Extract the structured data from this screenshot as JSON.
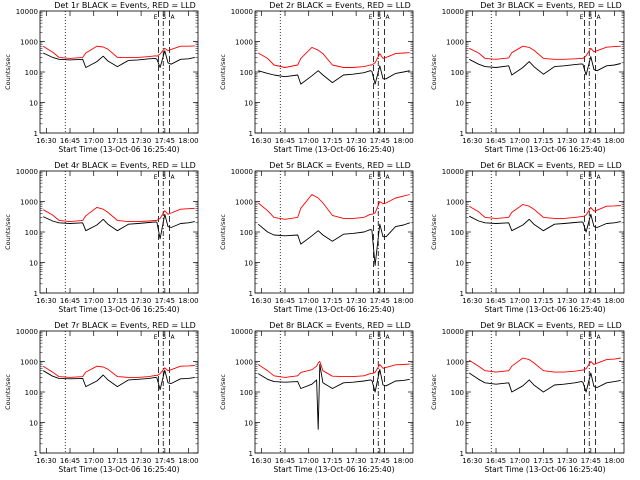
{
  "figure": {
    "xlabel": "Start Time (13-Oct-06 16:25:40)",
    "ylabel": "Counts/sec",
    "legend_events": "BLACK = Events",
    "legend_lld": "RED = LLD",
    "marker_labels": [
      "E",
      "S",
      "A"
    ]
  },
  "colors": {
    "events": "#000000",
    "lld": "#ff0000",
    "axes": "#000000"
  },
  "chart_data": [
    {
      "type": "line",
      "title": "Det 1r BLACK = Events, RED = LLD",
      "xlabel": "Start Time (13-Oct-06 16:25:40)",
      "ylabel": "Counts/sec",
      "scale": "log",
      "xlim": [
        "16:26",
        "18:06"
      ],
      "ylim": [
        1,
        10000
      ],
      "xticks": [
        "16:30",
        "16:45",
        "17:00",
        "17:15",
        "17:30",
        "17:45",
        "18:00"
      ],
      "yticks": [
        "1",
        "10",
        "100",
        "1000",
        "10000"
      ],
      "x": [
        "16:28",
        "16:34",
        "16:38",
        "16:45",
        "16:53",
        "16:55",
        "17:02",
        "17:06",
        "17:09",
        "17:15",
        "17:22",
        "17:28",
        "17:35",
        "17:39",
        "17:40",
        "17:42",
        "17:45",
        "17:47",
        "17:49",
        "17:55",
        "18:00",
        "18:04"
      ],
      "series": [
        {
          "name": "Events",
          "color": "#000000",
          "values": [
            420,
            300,
            260,
            250,
            260,
            140,
            220,
            330,
            230,
            150,
            240,
            250,
            270,
            280,
            260,
            140,
            500,
            200,
            180,
            260,
            270,
            300
          ]
        },
        {
          "name": "LLD",
          "color": "#ff0000",
          "values": [
            700,
            450,
            300,
            280,
            300,
            420,
            700,
            660,
            560,
            300,
            300,
            300,
            320,
            340,
            330,
            390,
            600,
            500,
            550,
            700,
            700,
            720
          ]
        }
      ]
    },
    {
      "type": "line",
      "title": "Det 2r BLACK = Events, RED = LLD",
      "xlabel": "Start Time (13-Oct-06 16:25:40)",
      "ylabel": "Counts/sec",
      "scale": "log",
      "xlim": [
        "16:26",
        "18:06"
      ],
      "ylim": [
        1,
        10000
      ],
      "xticks": [
        "16:30",
        "16:45",
        "17:00",
        "17:15",
        "17:30",
        "17:45",
        "18:00"
      ],
      "yticks": [
        "1",
        "10",
        "100",
        "1000",
        "10000"
      ],
      "x": [
        "16:28",
        "16:34",
        "16:38",
        "16:45",
        "16:53",
        "16:55",
        "17:02",
        "17:06",
        "17:09",
        "17:15",
        "17:22",
        "17:28",
        "17:35",
        "17:39",
        "17:40",
        "17:42",
        "17:45",
        "17:47",
        "17:49",
        "17:55",
        "18:00",
        "18:04"
      ],
      "series": [
        {
          "name": "Events",
          "color": "#000000",
          "values": [
            110,
            90,
            80,
            70,
            80,
            40,
            75,
            110,
            80,
            45,
            80,
            85,
            95,
            110,
            105,
            40,
            160,
            60,
            60,
            90,
            100,
            110
          ]
        },
        {
          "name": "LLD",
          "color": "#ff0000",
          "values": [
            420,
            280,
            170,
            140,
            170,
            280,
            640,
            520,
            400,
            170,
            140,
            140,
            150,
            170,
            170,
            200,
            400,
            280,
            300,
            400,
            420,
            430
          ]
        }
      ]
    },
    {
      "type": "line",
      "title": "Det 3r BLACK = Events, RED = LLD",
      "xlabel": "Start Time (13-Oct-06 16:25:40)",
      "ylabel": "Counts/sec",
      "scale": "log",
      "xlim": [
        "16:26",
        "18:06"
      ],
      "ylim": [
        1,
        10000
      ],
      "xticks": [
        "16:30",
        "16:45",
        "17:00",
        "17:15",
        "17:30",
        "17:45",
        "18:00"
      ],
      "yticks": [
        "1",
        "10",
        "100",
        "1000",
        "10000"
      ],
      "x": [
        "16:28",
        "16:34",
        "16:38",
        "16:45",
        "16:53",
        "16:55",
        "17:02",
        "17:06",
        "17:09",
        "17:15",
        "17:22",
        "17:28",
        "17:35",
        "17:39",
        "17:40",
        "17:42",
        "17:45",
        "17:47",
        "17:49",
        "17:55",
        "18:00",
        "18:04"
      ],
      "series": [
        {
          "name": "Events",
          "color": "#000000",
          "values": [
            260,
            180,
            150,
            140,
            160,
            80,
            140,
            220,
            150,
            85,
            150,
            160,
            175,
            185,
            180,
            80,
            320,
            120,
            110,
            160,
            170,
            190
          ]
        },
        {
          "name": "LLD",
          "color": "#ff0000",
          "values": [
            600,
            420,
            280,
            260,
            290,
            430,
            700,
            640,
            520,
            280,
            260,
            260,
            270,
            280,
            280,
            340,
            600,
            460,
            500,
            650,
            680,
            700
          ]
        }
      ]
    },
    {
      "type": "line",
      "title": "Det 4r BLACK = Events, RED = LLD",
      "xlabel": "Start Time (13-Oct-06 16:25:40)",
      "ylabel": "Counts/sec",
      "scale": "log",
      "xlim": [
        "16:26",
        "18:06"
      ],
      "ylim": [
        1,
        10000
      ],
      "xticks": [
        "16:30",
        "16:45",
        "17:00",
        "17:15",
        "17:30",
        "17:45",
        "18:00"
      ],
      "yticks": [
        "1",
        "10",
        "100",
        "1000",
        "10000"
      ],
      "x": [
        "16:28",
        "16:34",
        "16:38",
        "16:45",
        "16:53",
        "16:55",
        "17:02",
        "17:06",
        "17:09",
        "17:15",
        "17:22",
        "17:28",
        "17:35",
        "17:39",
        "17:40",
        "17:42",
        "17:45",
        "17:47",
        "17:49",
        "17:55",
        "18:00",
        "18:04"
      ],
      "series": [
        {
          "name": "Events",
          "color": "#000000",
          "values": [
            320,
            230,
            200,
            190,
            200,
            110,
            170,
            260,
            180,
            110,
            180,
            190,
            205,
            215,
            210,
            60,
            380,
            150,
            140,
            190,
            200,
            220
          ]
        },
        {
          "name": "LLD",
          "color": "#ff0000",
          "values": [
            540,
            360,
            240,
            220,
            240,
            340,
            640,
            560,
            440,
            240,
            220,
            220,
            230,
            240,
            240,
            280,
            500,
            380,
            420,
            560,
            580,
            600
          ]
        }
      ]
    },
    {
      "type": "line",
      "title": "Det 5r BLACK = Events, RED = LLD",
      "xlabel": "Start Time (13-Oct-06 16:25:40)",
      "ylabel": "Counts/sec",
      "scale": "log",
      "xlim": [
        "16:26",
        "18:06"
      ],
      "ylim": [
        1,
        10000
      ],
      "xticks": [
        "16:30",
        "16:45",
        "17:00",
        "17:15",
        "17:30",
        "17:45",
        "18:00"
      ],
      "yticks": [
        "1",
        "10",
        "100",
        "1000",
        "10000"
      ],
      "x": [
        "16:28",
        "16:34",
        "16:38",
        "16:45",
        "16:53",
        "16:55",
        "17:02",
        "17:06",
        "17:09",
        "17:15",
        "17:22",
        "17:28",
        "17:35",
        "17:39",
        "17:40",
        "17:42",
        "17:45",
        "17:47",
        "17:49",
        "17:55",
        "18:00",
        "18:04"
      ],
      "series": [
        {
          "name": "Events",
          "color": "#000000",
          "values": [
            180,
            100,
            80,
            75,
            80,
            40,
            75,
            110,
            80,
            50,
            85,
            90,
            100,
            120,
            115,
            8,
            180,
            70,
            70,
            150,
            170,
            200
          ]
        },
        {
          "name": "LLD",
          "color": "#ff0000",
          "values": [
            900,
            500,
            300,
            260,
            300,
            600,
            1700,
            1300,
            900,
            350,
            280,
            280,
            300,
            380,
            380,
            420,
            1000,
            850,
            900,
            1300,
            1500,
            1700
          ]
        }
      ]
    },
    {
      "type": "line",
      "title": "Det 6r BLACK = Events, RED = LLD",
      "xlabel": "Start Time (13-Oct-06 16:25:40)",
      "ylabel": "Counts/sec",
      "scale": "log",
      "xlim": [
        "16:26",
        "18:06"
      ],
      "ylim": [
        1,
        10000
      ],
      "xticks": [
        "16:30",
        "16:45",
        "17:00",
        "17:15",
        "17:30",
        "17:45",
        "18:00"
      ],
      "yticks": [
        "1",
        "10",
        "100",
        "1000",
        "10000"
      ],
      "x": [
        "16:28",
        "16:34",
        "16:38",
        "16:45",
        "16:53",
        "16:55",
        "17:02",
        "17:06",
        "17:09",
        "17:15",
        "17:22",
        "17:28",
        "17:35",
        "17:39",
        "17:40",
        "17:42",
        "17:45",
        "17:47",
        "17:49",
        "17:55",
        "18:00",
        "18:04"
      ],
      "series": [
        {
          "name": "Events",
          "color": "#000000",
          "values": [
            330,
            230,
            200,
            190,
            200,
            110,
            170,
            260,
            180,
            110,
            180,
            190,
            205,
            215,
            210,
            100,
            380,
            150,
            140,
            190,
            200,
            220
          ]
        },
        {
          "name": "LLD",
          "color": "#ff0000",
          "values": [
            700,
            460,
            300,
            280,
            300,
            440,
            800,
            700,
            560,
            300,
            280,
            280,
            300,
            320,
            320,
            360,
            640,
            480,
            520,
            700,
            720,
            740
          ]
        }
      ]
    },
    {
      "type": "line",
      "title": "Det 7r BLACK = Events, RED = LLD",
      "xlabel": "Start Time (13-Oct-06 16:25:40)",
      "ylabel": "Counts/sec",
      "scale": "log",
      "xlim": [
        "16:26",
        "18:06"
      ],
      "ylim": [
        1,
        10000
      ],
      "xticks": [
        "16:30",
        "16:45",
        "17:00",
        "17:15",
        "17:30",
        "17:45",
        "18:00"
      ],
      "yticks": [
        "1",
        "10",
        "100",
        "1000",
        "10000"
      ],
      "x": [
        "16:28",
        "16:34",
        "16:38",
        "16:45",
        "16:53",
        "16:55",
        "17:02",
        "17:06",
        "17:09",
        "17:15",
        "17:22",
        "17:28",
        "17:35",
        "17:39",
        "17:40",
        "17:42",
        "17:45",
        "17:47",
        "17:49",
        "17:55",
        "18:00",
        "18:04"
      ],
      "series": [
        {
          "name": "Events",
          "color": "#000000",
          "values": [
            500,
            330,
            280,
            270,
            280,
            150,
            230,
            360,
            250,
            150,
            250,
            260,
            280,
            300,
            290,
            120,
            520,
            200,
            190,
            270,
            280,
            300
          ]
        },
        {
          "name": "LLD",
          "color": "#ff0000",
          "values": [
            700,
            450,
            320,
            300,
            320,
            450,
            700,
            660,
            560,
            320,
            300,
            300,
            320,
            350,
            340,
            400,
            620,
            500,
            540,
            700,
            720,
            740
          ]
        }
      ]
    },
    {
      "type": "line",
      "title": "Det 8r BLACK = Events, RED = LLD",
      "xlabel": "Start Time (13-Oct-06 16:25:40)",
      "ylabel": "Counts/sec",
      "scale": "log",
      "xlim": [
        "16:26",
        "18:06"
      ],
      "ylim": [
        1,
        10000
      ],
      "xticks": [
        "16:30",
        "16:45",
        "17:00",
        "17:15",
        "17:30",
        "17:45",
        "18:00"
      ],
      "yticks": [
        "1",
        "10",
        "100",
        "1000",
        "10000"
      ],
      "x": [
        "16:28",
        "16:34",
        "16:38",
        "16:45",
        "16:53",
        "16:55",
        "17:02",
        "17:05",
        "17:06",
        "17:07",
        "17:09",
        "17:15",
        "17:22",
        "17:28",
        "17:35",
        "17:39",
        "17:40",
        "17:42",
        "17:45",
        "17:47",
        "17:49",
        "17:55",
        "18:00",
        "18:04"
      ],
      "series": [
        {
          "name": "Events",
          "color": "#000000",
          "values": [
            400,
            260,
            220,
            210,
            220,
            130,
            180,
            250,
            6,
            800,
            200,
            130,
            200,
            210,
            230,
            250,
            240,
            100,
            550,
            170,
            160,
            230,
            240,
            260
          ]
        },
        {
          "name": "LLD",
          "color": "#ff0000",
          "values": [
            800,
            500,
            340,
            300,
            340,
            440,
            540,
            700,
            900,
            1000,
            500,
            330,
            320,
            320,
            340,
            400,
            400,
            440,
            800,
            600,
            640,
            780,
            800,
            820
          ]
        }
      ]
    },
    {
      "type": "line",
      "title": "Det 9r BLACK = Events, RED = LLD",
      "xlabel": "Start Time (13-Oct-06 16:25:40)",
      "ylabel": "Counts/sec",
      "scale": "log",
      "xlim": [
        "16:26",
        "18:06"
      ],
      "ylim": [
        1,
        10000
      ],
      "xticks": [
        "16:30",
        "16:45",
        "17:00",
        "17:15",
        "17:30",
        "17:45",
        "18:00"
      ],
      "yticks": [
        "1",
        "10",
        "100",
        "1000",
        "10000"
      ],
      "x": [
        "16:28",
        "16:34",
        "16:38",
        "16:45",
        "16:53",
        "16:55",
        "17:02",
        "17:06",
        "17:09",
        "17:15",
        "17:22",
        "17:28",
        "17:35",
        "17:39",
        "17:40",
        "17:42",
        "17:45",
        "17:47",
        "17:49",
        "17:55",
        "18:00",
        "18:04"
      ],
      "series": [
        {
          "name": "Events",
          "color": "#000000",
          "values": [
            420,
            260,
            200,
            180,
            200,
            100,
            160,
            250,
            170,
            100,
            170,
            180,
            200,
            220,
            210,
            100,
            420,
            150,
            140,
            200,
            220,
            240
          ]
        },
        {
          "name": "LLD",
          "color": "#ff0000",
          "values": [
            1100,
            700,
            500,
            450,
            500,
            700,
            1300,
            1150,
            900,
            500,
            450,
            450,
            480,
            520,
            520,
            580,
            1000,
            800,
            880,
            1150,
            1200,
            1300
          ]
        }
      ]
    }
  ],
  "markers": {
    "dotted_time": "16:42",
    "dashed_times": [
      "17:41",
      "17:48"
    ],
    "dashdot_time": "17:44"
  }
}
